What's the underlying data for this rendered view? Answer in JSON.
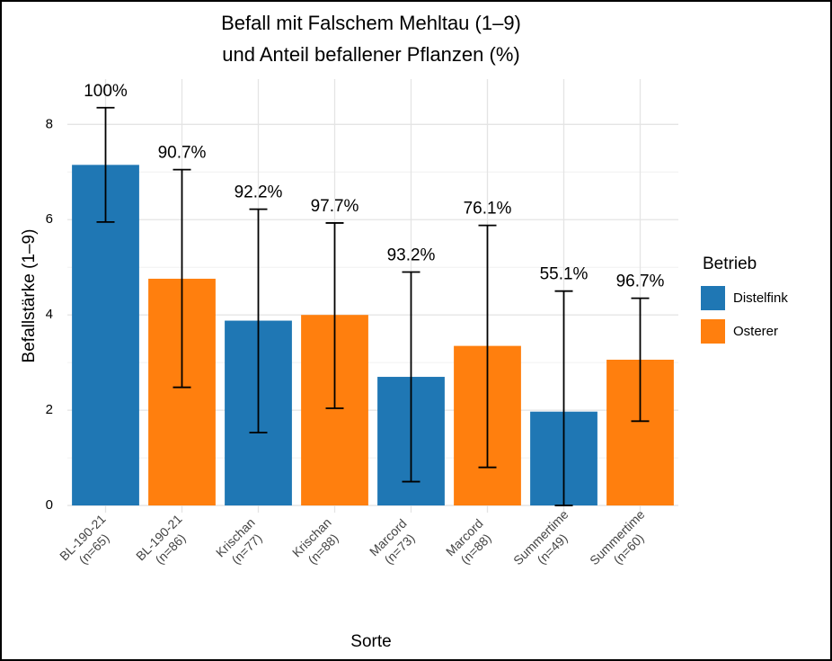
{
  "chart_data": {
    "type": "bar",
    "title": [
      "Befall mit Falschem Mehltau (1–9)",
      "und Anteil befallener Pflanzen (%)"
    ],
    "xlabel": "Sorte",
    "ylabel": "Befallstärke (1–9)",
    "categories": [
      [
        "BL-190-21",
        "(n=65)"
      ],
      [
        "BL-190-21",
        "(n=86)"
      ],
      [
        "Krischan",
        "(n=77)"
      ],
      [
        "Krischan",
        "(n=88)"
      ],
      [
        "Marcord",
        "(n=73)"
      ],
      [
        "Marcord",
        "(n=88)"
      ],
      [
        "Summertime",
        "(n=49)"
      ],
      [
        "Summertime",
        "(n=60)"
      ]
    ],
    "legend_title": "Betrieb",
    "series": [
      {
        "name": "Distelfink",
        "color": "#1f77b4",
        "values": [
          7.15,
          null,
          3.88,
          null,
          2.7,
          null,
          1.97,
          null
        ],
        "error_low": [
          5.95,
          null,
          1.53,
          null,
          0.5,
          null,
          0,
          null
        ],
        "error_high": [
          8.35,
          null,
          6.22,
          null,
          4.9,
          null,
          4.5,
          null
        ]
      },
      {
        "name": "Osterer",
        "color": "#ff7f0e",
        "values": [
          null,
          4.76,
          null,
          4.0,
          null,
          3.35,
          null,
          3.06
        ],
        "error_low": [
          null,
          2.48,
          null,
          2.04,
          null,
          0.8,
          null,
          1.77
        ],
        "error_high": [
          null,
          7.05,
          null,
          5.93,
          null,
          5.88,
          null,
          4.35
        ]
      }
    ],
    "value_labels": [
      "100%",
      "90.7%",
      "92.2%",
      "97.7%",
      "93.2%",
      "76.1%",
      "55.1%",
      "96.7%"
    ],
    "ylim": [
      -0.15,
      8.95
    ],
    "yticks": [
      0,
      2,
      4,
      6,
      8
    ],
    "minor_yticks": [
      1,
      3,
      5,
      7
    ],
    "grid": true,
    "legend": "right"
  }
}
